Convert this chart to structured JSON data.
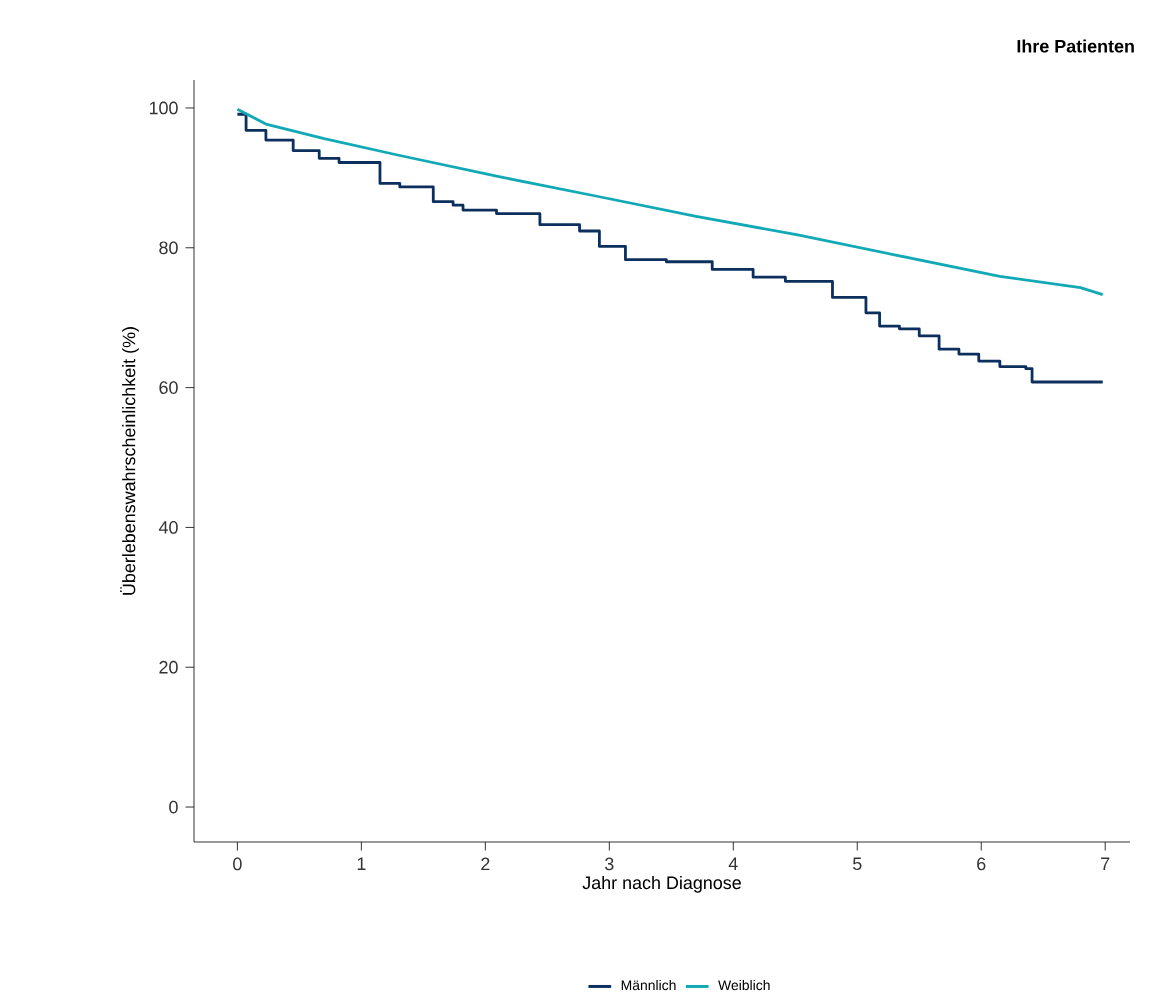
{
  "chart_data": {
    "type": "step",
    "title": "**Ihre Patienten**",
    "xlabel": "Jahr nach Diagnose",
    "ylabel": "Überlebenswahrscheinlichkeit (%)",
    "xlim": [
      -0.35,
      7.2
    ],
    "ylim": [
      -5,
      104
    ],
    "xticks": [
      0,
      1,
      2,
      3,
      4,
      5,
      6,
      7
    ],
    "yticks": [
      0,
      20,
      40,
      60,
      80,
      100
    ],
    "grid": false,
    "legend": "bottom",
    "series": [
      {
        "name": "Männlich",
        "color": "#0d2f5e",
        "x": [
          0,
          0.07,
          0.23,
          0.45,
          0.66,
          0.82,
          1.15,
          1.31,
          1.58,
          1.74,
          1.82,
          2.09,
          2.44,
          2.76,
          2.92,
          3.13,
          3.46,
          3.83,
          4.16,
          4.42,
          4.8,
          5.07,
          5.18,
          5.34,
          5.5,
          5.66,
          5.82,
          5.98,
          6.15,
          6.36,
          6.41,
          6.98
        ],
        "values": [
          99.1,
          96.8,
          95.4,
          93.9,
          92.8,
          92.2,
          89.2,
          88.7,
          86.6,
          86.1,
          85.4,
          84.9,
          83.3,
          82.4,
          80.2,
          78.3,
          78.0,
          76.9,
          75.8,
          75.2,
          72.9,
          70.7,
          68.8,
          68.4,
          67.4,
          65.5,
          64.8,
          63.8,
          63.0,
          62.7,
          60.8,
          60.8
        ]
      },
      {
        "name": "Weiblich",
        "type": "line",
        "color": "#11a9b5",
        "x": [
          0,
          0.23,
          0.7,
          1.31,
          2.1,
          2.92,
          3.7,
          4.53,
          5.3,
          6.15,
          6.8,
          6.98
        ],
        "values": [
          99.8,
          97.7,
          95.6,
          93.2,
          90.2,
          87.3,
          84.5,
          81.8,
          79.0,
          75.9,
          74.3,
          73.3
        ]
      }
    ]
  }
}
